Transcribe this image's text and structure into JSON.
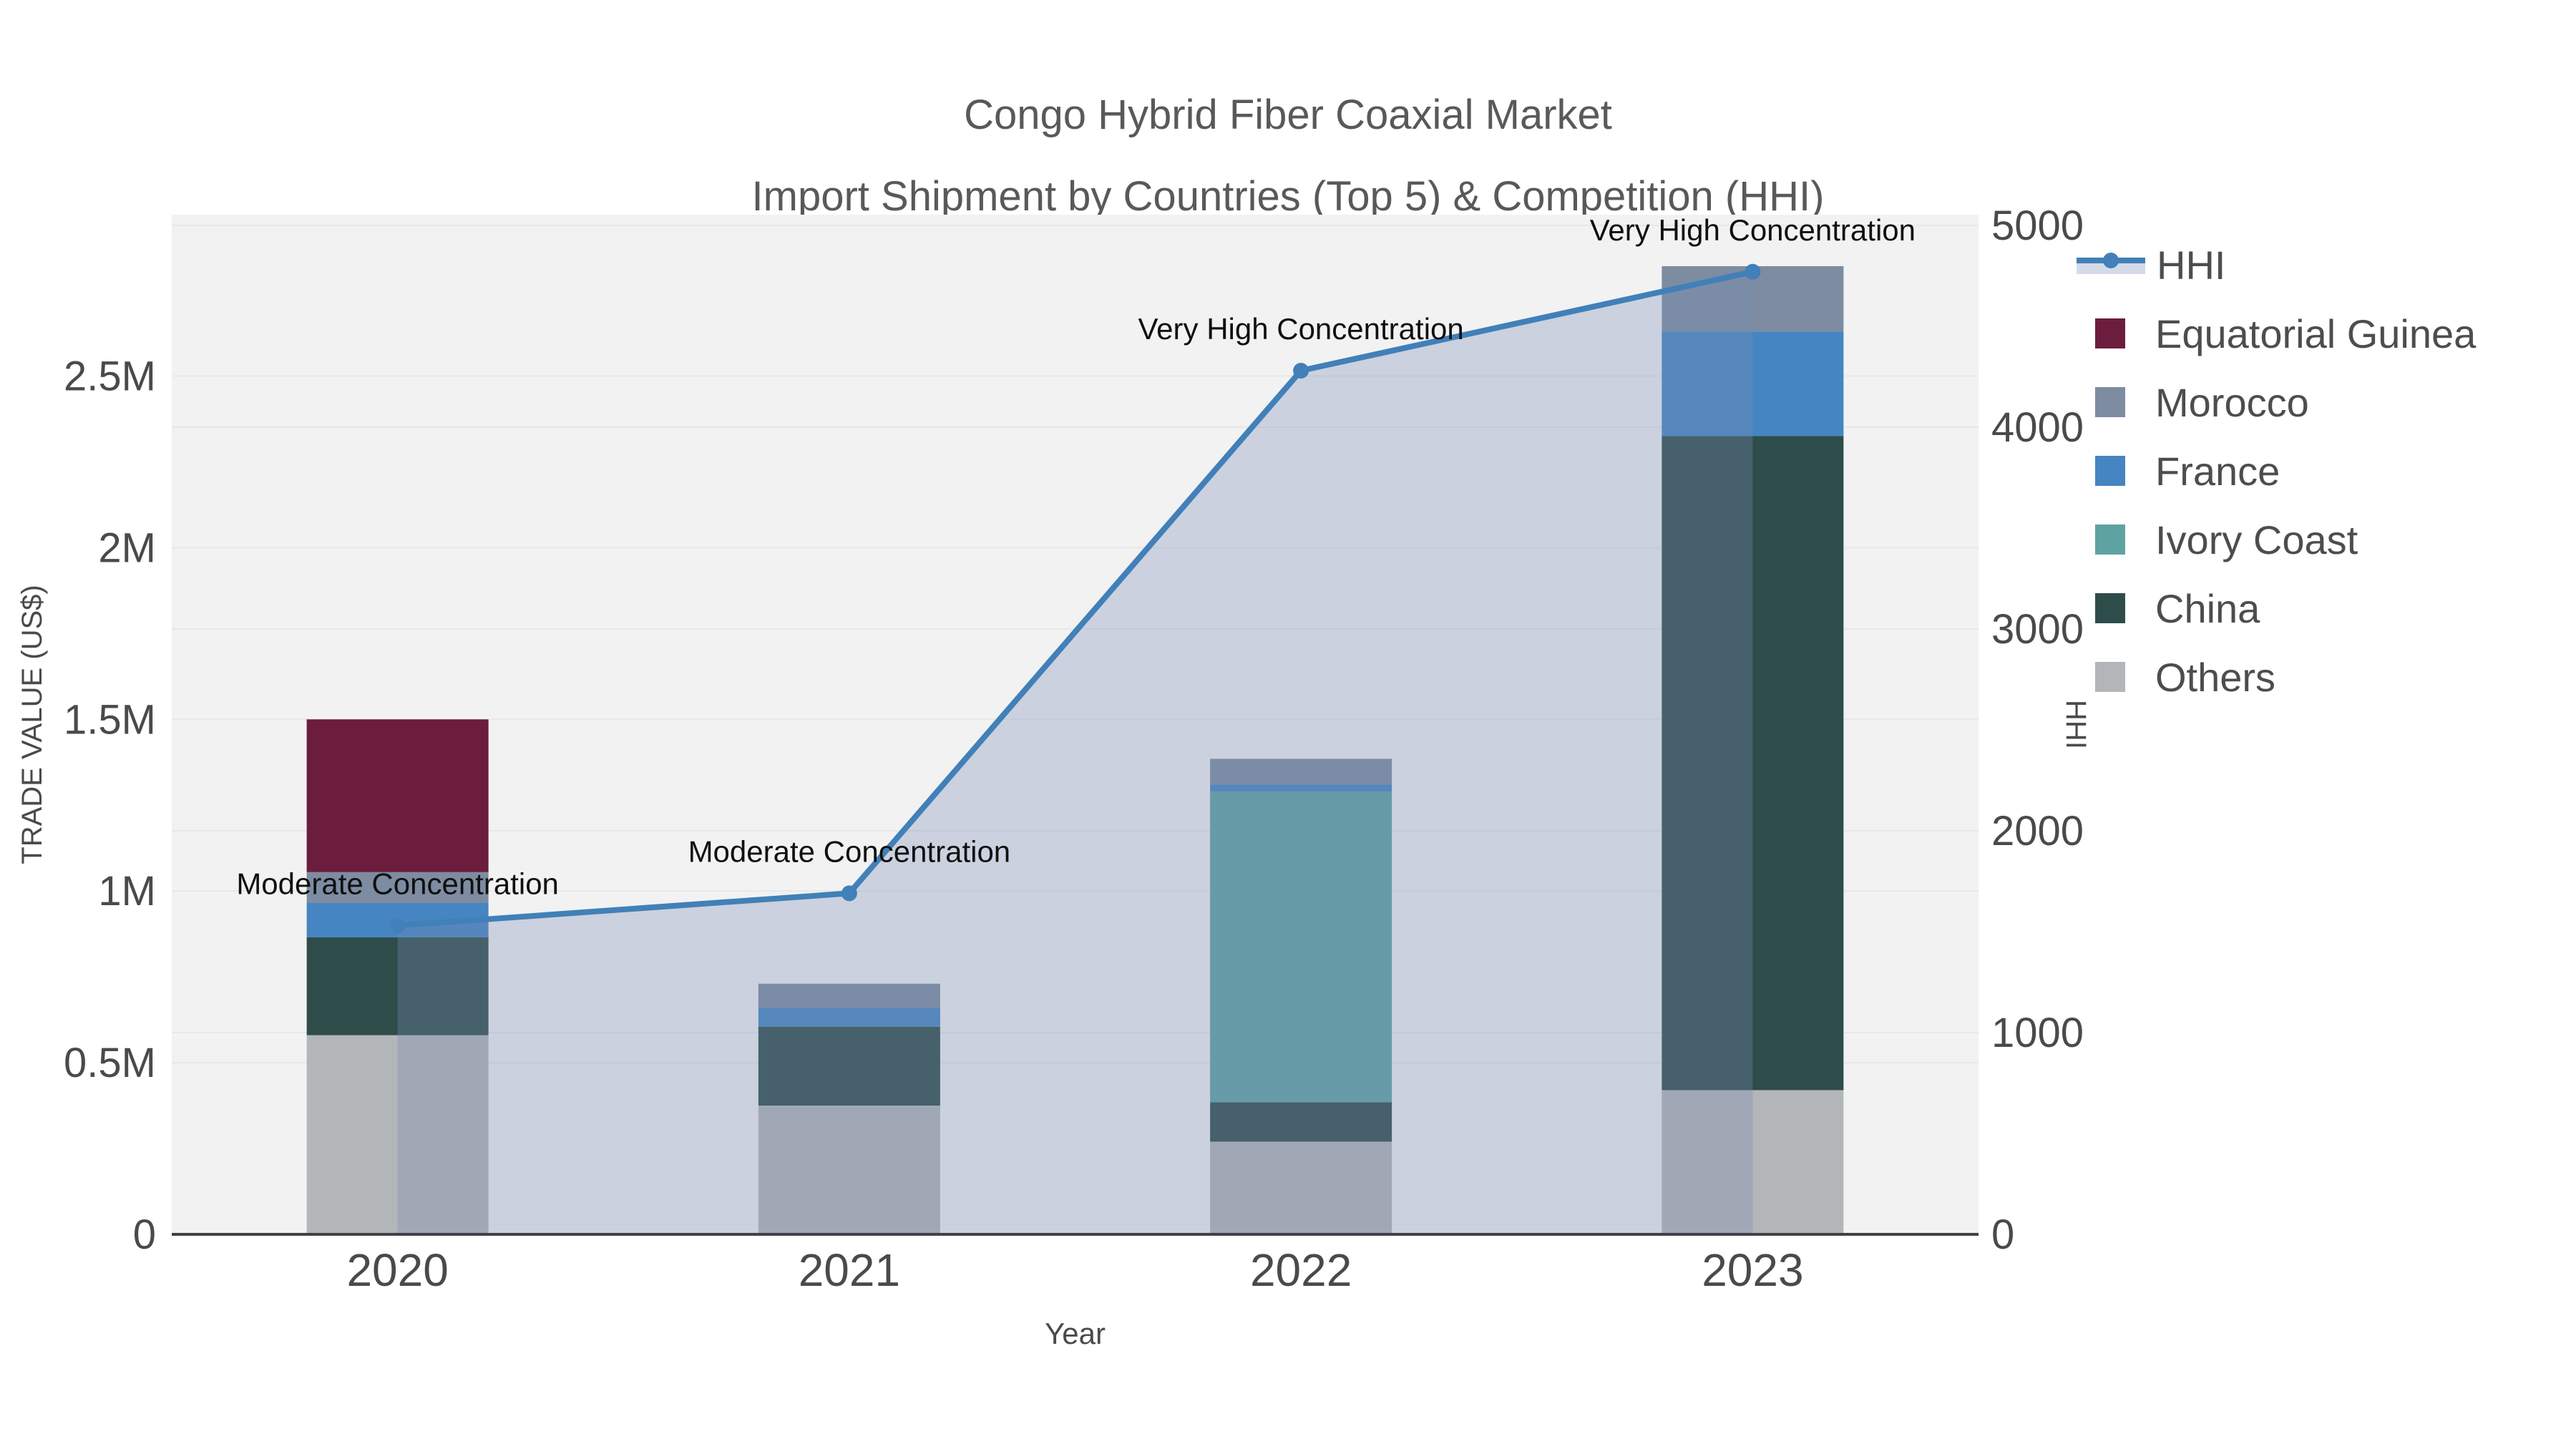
{
  "title": {
    "line1": "Congo Hybrid Fiber Coaxial Market",
    "line2": "Import Shipment by Countries (Top 5) & Competition (HHI)"
  },
  "chart_data": {
    "type": "bar",
    "variant": "stacked bars (left axis) with HHI line + shaded area overlay (right axis)",
    "categories": [
      "2020",
      "2021",
      "2022",
      "2023"
    ],
    "series": [
      {
        "name": "Others",
        "color": "#B3B6B9",
        "values": [
          580000,
          375000,
          270000,
          420000
        ]
      },
      {
        "name": "China",
        "color": "#2E4D4A",
        "values": [
          285000,
          230000,
          115000,
          1905000
        ]
      },
      {
        "name": "Ivory Coast",
        "color": "#5EA3A2",
        "values": [
          0,
          0,
          905000,
          0
        ]
      },
      {
        "name": "France",
        "color": "#4585C1",
        "values": [
          100000,
          55000,
          20000,
          305000
        ]
      },
      {
        "name": "Morocco",
        "color": "#7D8CA1",
        "values": [
          90000,
          70000,
          75000,
          190000
        ]
      },
      {
        "name": "Equatorial Guinea",
        "color": "#6C1D3D",
        "values": [
          445000,
          0,
          0,
          0
        ]
      }
    ],
    "line_series": {
      "name": "HHI",
      "axis": "right",
      "color": "#4180B8",
      "fill": "rgba(122,140,178,0.32)",
      "values": [
        1530,
        1690,
        4280,
        4770
      ]
    },
    "annotations": [
      "Moderate Concentration",
      "Moderate Concentration",
      "Very High Concentration",
      "Very High Concentration"
    ],
    "xlabel": "Year",
    "ylabel": "TRADE VALUE (US$)",
    "ylabel_right": "HHI",
    "yticks_left": {
      "values": [
        0,
        500000,
        1000000,
        1500000,
        2000000,
        2500000
      ],
      "labels": [
        "0",
        "0.5M",
        "1M",
        "1.5M",
        "2M",
        "2.5M"
      ]
    },
    "yticks_right": {
      "values": [
        0,
        1000,
        2000,
        3000,
        4000,
        5000
      ],
      "labels": [
        "0",
        "1000",
        "2000",
        "3000",
        "4000",
        "5000"
      ]
    },
    "ylim_left": [
      0,
      2970000
    ],
    "ylim_right": [
      0,
      5053
    ],
    "grid": true,
    "legend_position": "right"
  },
  "legend": {
    "items": [
      {
        "label": "HHI",
        "type": "line"
      },
      {
        "label": "Equatorial Guinea",
        "type": "swatch",
        "color": "#6C1D3D"
      },
      {
        "label": "Morocco",
        "type": "swatch",
        "color": "#7D8CA1"
      },
      {
        "label": "France",
        "type": "swatch",
        "color": "#4585C1"
      },
      {
        "label": "Ivory Coast",
        "type": "swatch",
        "color": "#5EA3A2"
      },
      {
        "label": "China",
        "type": "swatch",
        "color": "#2E4D4A"
      },
      {
        "label": "Others",
        "type": "swatch",
        "color": "#B3B6B9"
      }
    ]
  },
  "colors": {
    "plot_background": "#F2F2F3",
    "gridline": "#E7E8EA",
    "axis_line": "#3F4247",
    "tick_text": "#4A4A4A",
    "title_text": "#595959",
    "annotation_text": "#101010",
    "legend_text": "#4D4D4D",
    "hhi_line": "#4180B8",
    "hhi_fill": "rgba(122,140,178,0.32)"
  }
}
